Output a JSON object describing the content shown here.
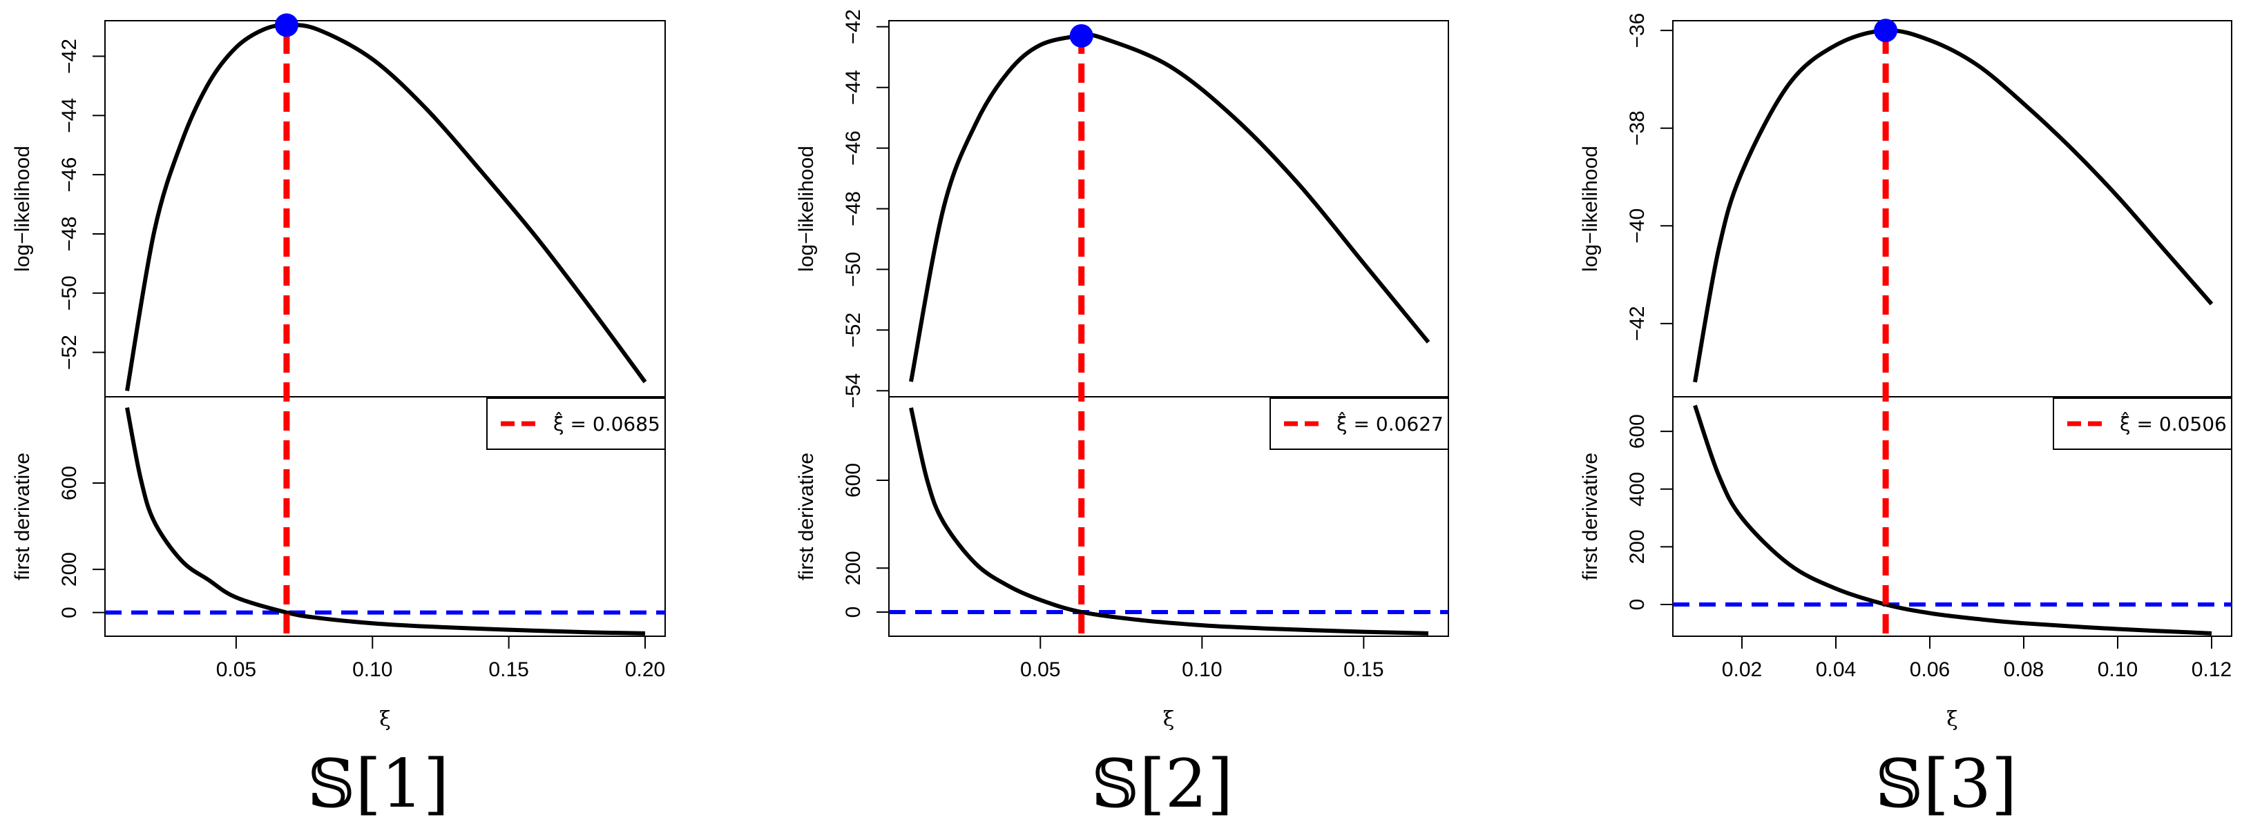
{
  "chart_data": [
    {
      "caption": "𝕊[1]",
      "type": "line",
      "xlabel": "ξ",
      "xlim": [
        0.01,
        0.2
      ],
      "x_ticks": [
        "0.05",
        "0.10",
        "0.15",
        "0.20"
      ],
      "xi_hat": 0.0685,
      "legend_text": "ξ̂ = 0.0685",
      "top": {
        "ylabel": "log−likelihood",
        "ylim": [
          -53.5,
          -40.8
        ],
        "y_ticks": [
          "−42",
          "−44",
          "−46",
          "−48",
          "−50",
          "−52"
        ],
        "series": [
          {
            "x": [
              0.01,
              0.02,
              0.03,
              0.04,
              0.05,
              0.06,
              0.0685,
              0.08,
              0.1,
              0.12,
              0.14,
              0.16,
              0.18,
              0.2
            ],
            "y": [
              -53.3,
              -47.9,
              -44.9,
              -42.9,
              -41.7,
              -41.1,
              -40.95,
              -41.1,
              -42.1,
              -43.8,
              -45.9,
              -48.1,
              -50.5,
              -53.0
            ]
          }
        ],
        "peak": {
          "x": 0.0685,
          "y": -40.95
        }
      },
      "bottom": {
        "ylabel": "first derivative",
        "ylim": [
          -110,
          1000
        ],
        "y_ticks": [
          "0",
          "200",
          "600"
        ],
        "series": [
          {
            "x": [
              0.01,
              0.015,
              0.02,
              0.03,
              0.04,
              0.05,
              0.0685,
              0.08,
              0.1,
              0.12,
              0.15,
              0.18,
              0.2
            ],
            "y": [
              950,
              620,
              420,
              240,
              150,
              70,
              0,
              -25,
              -50,
              -65,
              -80,
              -92,
              -97
            ]
          }
        ],
        "zero_line": 0
      }
    },
    {
      "caption": "𝕊[2]",
      "type": "line",
      "xlabel": "ξ",
      "xlim": [
        0.01,
        0.17
      ],
      "x_ticks": [
        "0.05",
        "0.10",
        "0.15"
      ],
      "xi_hat": 0.0627,
      "legend_text": "ξ̂ = 0.0627",
      "top": {
        "ylabel": "log−likelihood",
        "ylim": [
          -54.2,
          -41.8
        ],
        "y_ticks": [
          "−42",
          "−44",
          "−46",
          "−48",
          "−50",
          "−52",
          "−54"
        ],
        "series": [
          {
            "x": [
              0.01,
              0.02,
              0.03,
              0.04,
              0.05,
              0.0627,
              0.07,
              0.09,
              0.11,
              0.13,
              0.15,
              0.17
            ],
            "y": [
              -53.7,
              -48.0,
              -45.2,
              -43.5,
              -42.6,
              -42.3,
              -42.4,
              -43.3,
              -45.0,
              -47.2,
              -49.8,
              -52.4
            ]
          }
        ],
        "peak": {
          "x": 0.0627,
          "y": -42.3
        }
      },
      "bottom": {
        "ylabel": "first derivative",
        "ylim": [
          -110,
          980
        ],
        "y_ticks": [
          "0",
          "200",
          "600"
        ],
        "series": [
          {
            "x": [
              0.01,
              0.015,
              0.02,
              0.03,
              0.04,
              0.05,
              0.0627,
              0.08,
              0.1,
              0.12,
              0.15,
              0.17
            ],
            "y": [
              930,
              600,
              410,
              220,
              120,
              55,
              0,
              -35,
              -60,
              -75,
              -90,
              -97
            ]
          }
        ],
        "zero_line": 0
      }
    },
    {
      "caption": "𝕊[3]",
      "type": "line",
      "xlabel": "ξ",
      "xlim": [
        0.01,
        0.12
      ],
      "x_ticks": [
        "0.02",
        "0.04",
        "0.06",
        "0.08",
        "0.10",
        "0.12"
      ],
      "xi_hat": 0.0506,
      "legend_text": "ξ̂ = 0.0506",
      "top": {
        "ylabel": "log−likelihood",
        "ylim": [
          -43.5,
          -35.8
        ],
        "y_ticks": [
          "−36",
          "−38",
          "−40",
          "−42"
        ],
        "series": [
          {
            "x": [
              0.01,
              0.015,
              0.02,
              0.03,
              0.04,
              0.0506,
              0.06,
              0.07,
              0.08,
              0.09,
              0.1,
              0.11,
              0.12
            ],
            "y": [
              -43.2,
              -40.5,
              -38.9,
              -37.1,
              -36.3,
              -36.0,
              -36.2,
              -36.7,
              -37.5,
              -38.4,
              -39.4,
              -40.5,
              -41.6
            ]
          }
        ],
        "peak": {
          "x": 0.0506,
          "y": -36.0
        }
      },
      "bottom": {
        "ylabel": "first derivative",
        "ylim": [
          -110,
          720
        ],
        "y_ticks": [
          "0",
          "200",
          "400",
          "600"
        ],
        "series": [
          {
            "x": [
              0.01,
              0.015,
              0.02,
              0.03,
              0.04,
              0.0506,
              0.06,
              0.07,
              0.08,
              0.1,
              0.12
            ],
            "y": [
              690,
              450,
              300,
              140,
              55,
              0,
              -30,
              -50,
              -65,
              -85,
              -100
            ]
          }
        ],
        "zero_line": 0
      }
    }
  ]
}
